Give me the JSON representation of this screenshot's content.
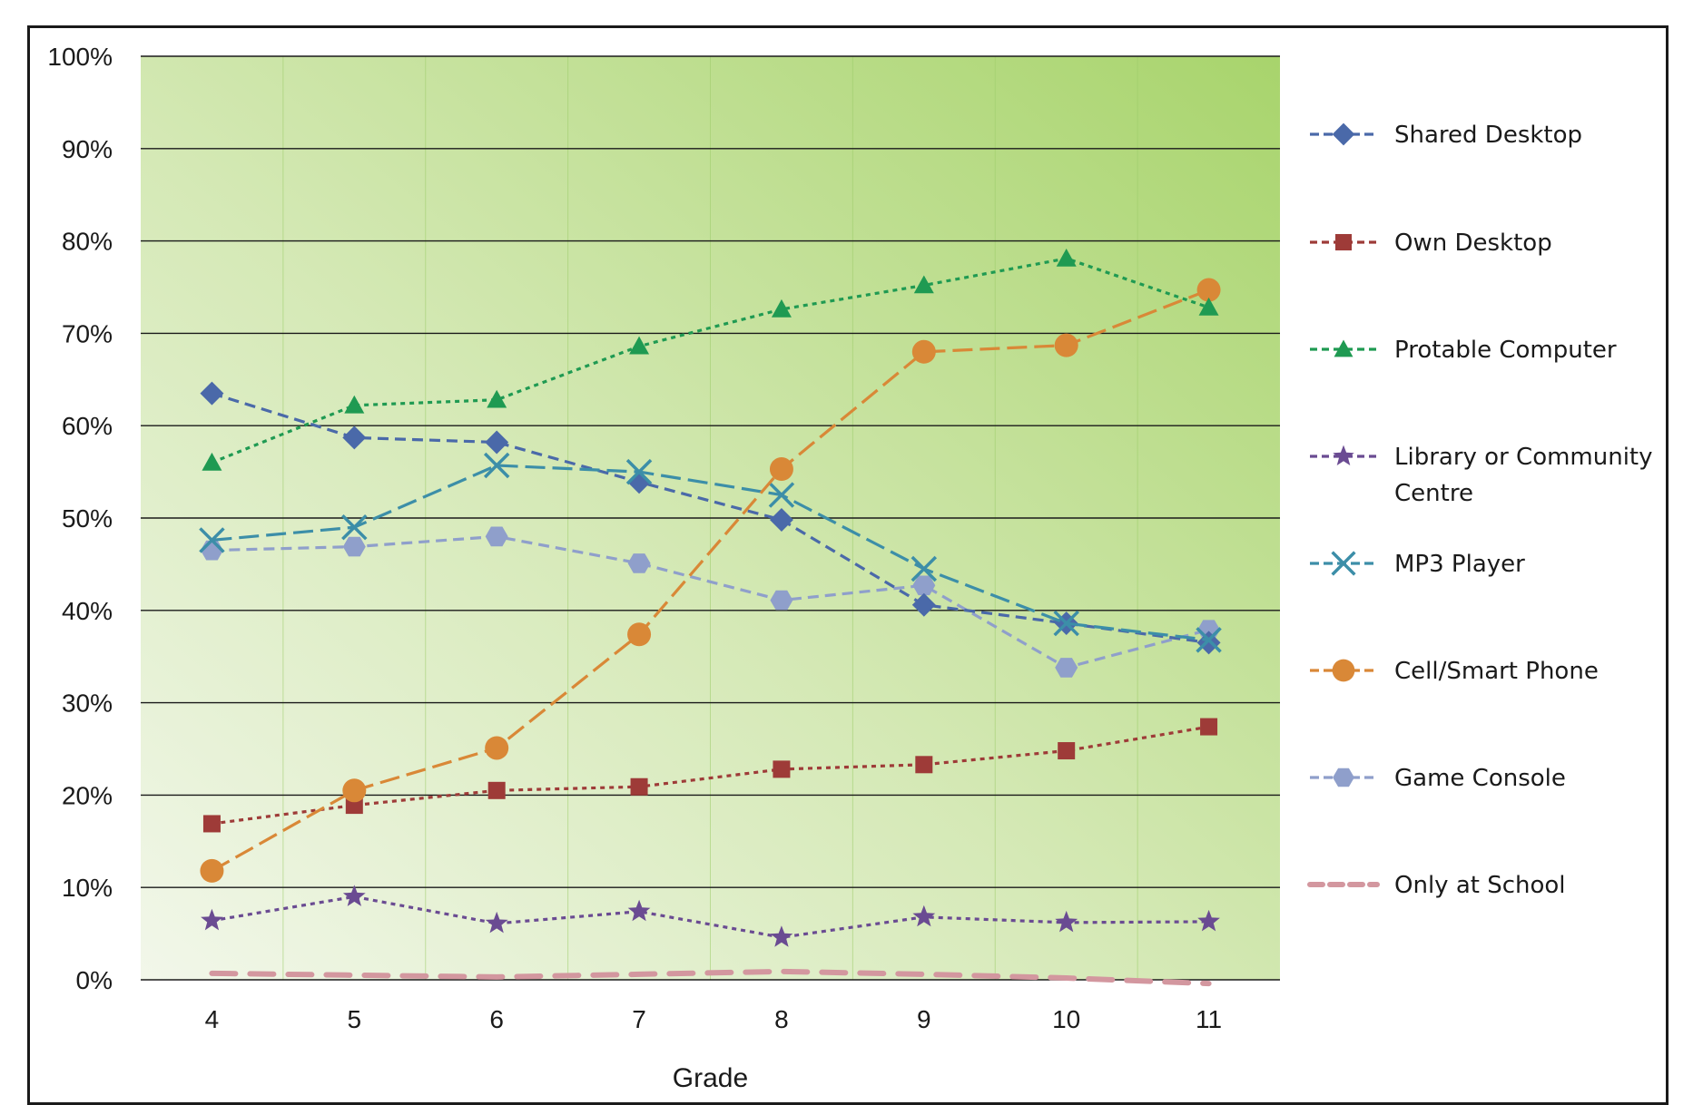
{
  "chart_data": {
    "type": "line",
    "title": "",
    "xlabel": "Grade",
    "ylabel": "",
    "categories": [
      "4",
      "5",
      "6",
      "7",
      "8",
      "9",
      "10",
      "11"
    ],
    "y_ticks": [
      "0%",
      "10%",
      "20%",
      "30%",
      "40%",
      "50%",
      "60%",
      "70%",
      "80%",
      "90%",
      "100%"
    ],
    "ylim": [
      0,
      100
    ],
    "y_unit": "%",
    "grid": "horizontal",
    "legend_position": "right",
    "series": [
      {
        "name": "Shared Desktop",
        "values": [
          63.5,
          58.7,
          58.2,
          53.9,
          49.8,
          40.6,
          38.6,
          36.5
        ],
        "color": "#4a69a9",
        "marker": "diamond",
        "dash": "dash"
      },
      {
        "name": "Own Desktop",
        "values": [
          16.9,
          18.9,
          20.5,
          20.9,
          22.8,
          23.3,
          24.8,
          27.4
        ],
        "color": "#9e3b38",
        "marker": "square",
        "dash": "dot"
      },
      {
        "name": "Protable Computer",
        "values": [
          56.0,
          62.2,
          62.8,
          68.6,
          72.6,
          75.2,
          78.1,
          72.8
        ],
        "color": "#1f9a52",
        "marker": "triangle",
        "dash": "dot"
      },
      {
        "name": "Library or Community Centre",
        "values": [
          6.4,
          9.0,
          6.1,
          7.4,
          4.6,
          6.8,
          6.2,
          6.3
        ],
        "color": "#6a4b92",
        "marker": "star",
        "dash": "dot"
      },
      {
        "name": "MP3 Player",
        "values": [
          47.6,
          49.0,
          55.7,
          55.0,
          52.5,
          44.5,
          38.6,
          36.8
        ],
        "color": "#3c8ea8",
        "marker": "x",
        "dash": "longdash"
      },
      {
        "name": "Cell/Smart Phone",
        "values": [
          11.8,
          20.5,
          25.1,
          37.4,
          55.3,
          68.0,
          68.7,
          74.7
        ],
        "color": "#d98837",
        "marker": "circle",
        "dash": "longdash"
      },
      {
        "name": "Game Console",
        "values": [
          46.5,
          46.9,
          48.0,
          45.1,
          41.1,
          42.7,
          33.8,
          37.9
        ],
        "color": "#8f9fcb",
        "marker": "hexagon",
        "dash": "dash"
      },
      {
        "name": "Only at School",
        "values": [
          0.7,
          0.5,
          0.3,
          0.6,
          0.9,
          0.6,
          0.2,
          -0.4
        ],
        "color": "#d3979f",
        "marker": "none",
        "dash": "heavydash"
      }
    ]
  },
  "legend": {
    "items": [
      {
        "lines": [
          "Shared Desktop"
        ]
      },
      {
        "lines": [
          "Own Desktop"
        ]
      },
      {
        "lines": [
          "Protable Computer"
        ]
      },
      {
        "lines": [
          "Library or Community",
          "Centre"
        ]
      },
      {
        "lines": [
          "MP3 Player"
        ]
      },
      {
        "lines": [
          "Cell/Smart Phone"
        ]
      },
      {
        "lines": [
          "Game Console"
        ]
      },
      {
        "lines": [
          "Only at School"
        ]
      }
    ]
  }
}
